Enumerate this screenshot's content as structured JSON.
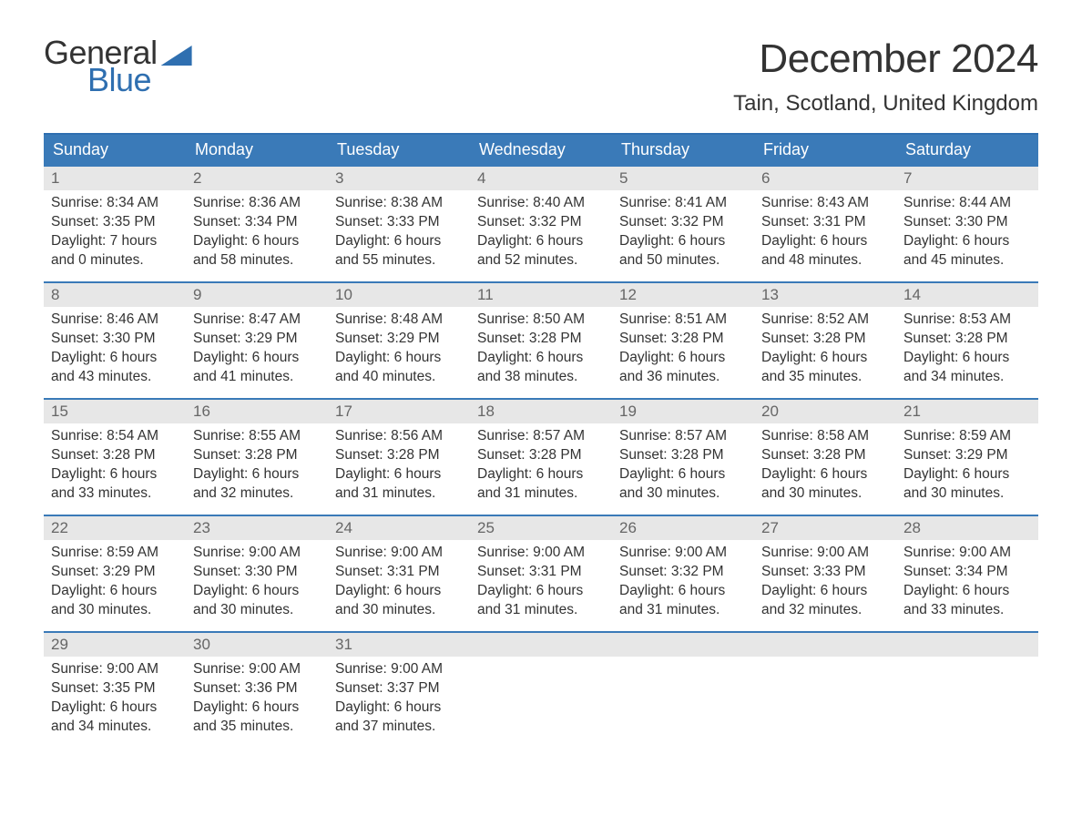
{
  "logo": {
    "word1": "General",
    "word2": "Blue"
  },
  "title": "December 2024",
  "location": "Tain, Scotland, United Kingdom",
  "colors": {
    "brand_blue": "#2f6fb0",
    "header_blue": "#3a7ab8",
    "daynum_bg": "#e7e7e7",
    "text": "#333333",
    "muted": "#666666"
  },
  "weekdays": [
    "Sunday",
    "Monday",
    "Tuesday",
    "Wednesday",
    "Thursday",
    "Friday",
    "Saturday"
  ],
  "weeks": [
    [
      {
        "n": "1",
        "sunrise": "Sunrise: 8:34 AM",
        "sunset": "Sunset: 3:35 PM",
        "d1": "Daylight: 7 hours",
        "d2": "and 0 minutes."
      },
      {
        "n": "2",
        "sunrise": "Sunrise: 8:36 AM",
        "sunset": "Sunset: 3:34 PM",
        "d1": "Daylight: 6 hours",
        "d2": "and 58 minutes."
      },
      {
        "n": "3",
        "sunrise": "Sunrise: 8:38 AM",
        "sunset": "Sunset: 3:33 PM",
        "d1": "Daylight: 6 hours",
        "d2": "and 55 minutes."
      },
      {
        "n": "4",
        "sunrise": "Sunrise: 8:40 AM",
        "sunset": "Sunset: 3:32 PM",
        "d1": "Daylight: 6 hours",
        "d2": "and 52 minutes."
      },
      {
        "n": "5",
        "sunrise": "Sunrise: 8:41 AM",
        "sunset": "Sunset: 3:32 PM",
        "d1": "Daylight: 6 hours",
        "d2": "and 50 minutes."
      },
      {
        "n": "6",
        "sunrise": "Sunrise: 8:43 AM",
        "sunset": "Sunset: 3:31 PM",
        "d1": "Daylight: 6 hours",
        "d2": "and 48 minutes."
      },
      {
        "n": "7",
        "sunrise": "Sunrise: 8:44 AM",
        "sunset": "Sunset: 3:30 PM",
        "d1": "Daylight: 6 hours",
        "d2": "and 45 minutes."
      }
    ],
    [
      {
        "n": "8",
        "sunrise": "Sunrise: 8:46 AM",
        "sunset": "Sunset: 3:30 PM",
        "d1": "Daylight: 6 hours",
        "d2": "and 43 minutes."
      },
      {
        "n": "9",
        "sunrise": "Sunrise: 8:47 AM",
        "sunset": "Sunset: 3:29 PM",
        "d1": "Daylight: 6 hours",
        "d2": "and 41 minutes."
      },
      {
        "n": "10",
        "sunrise": "Sunrise: 8:48 AM",
        "sunset": "Sunset: 3:29 PM",
        "d1": "Daylight: 6 hours",
        "d2": "and 40 minutes."
      },
      {
        "n": "11",
        "sunrise": "Sunrise: 8:50 AM",
        "sunset": "Sunset: 3:28 PM",
        "d1": "Daylight: 6 hours",
        "d2": "and 38 minutes."
      },
      {
        "n": "12",
        "sunrise": "Sunrise: 8:51 AM",
        "sunset": "Sunset: 3:28 PM",
        "d1": "Daylight: 6 hours",
        "d2": "and 36 minutes."
      },
      {
        "n": "13",
        "sunrise": "Sunrise: 8:52 AM",
        "sunset": "Sunset: 3:28 PM",
        "d1": "Daylight: 6 hours",
        "d2": "and 35 minutes."
      },
      {
        "n": "14",
        "sunrise": "Sunrise: 8:53 AM",
        "sunset": "Sunset: 3:28 PM",
        "d1": "Daylight: 6 hours",
        "d2": "and 34 minutes."
      }
    ],
    [
      {
        "n": "15",
        "sunrise": "Sunrise: 8:54 AM",
        "sunset": "Sunset: 3:28 PM",
        "d1": "Daylight: 6 hours",
        "d2": "and 33 minutes."
      },
      {
        "n": "16",
        "sunrise": "Sunrise: 8:55 AM",
        "sunset": "Sunset: 3:28 PM",
        "d1": "Daylight: 6 hours",
        "d2": "and 32 minutes."
      },
      {
        "n": "17",
        "sunrise": "Sunrise: 8:56 AM",
        "sunset": "Sunset: 3:28 PM",
        "d1": "Daylight: 6 hours",
        "d2": "and 31 minutes."
      },
      {
        "n": "18",
        "sunrise": "Sunrise: 8:57 AM",
        "sunset": "Sunset: 3:28 PM",
        "d1": "Daylight: 6 hours",
        "d2": "and 31 minutes."
      },
      {
        "n": "19",
        "sunrise": "Sunrise: 8:57 AM",
        "sunset": "Sunset: 3:28 PM",
        "d1": "Daylight: 6 hours",
        "d2": "and 30 minutes."
      },
      {
        "n": "20",
        "sunrise": "Sunrise: 8:58 AM",
        "sunset": "Sunset: 3:28 PM",
        "d1": "Daylight: 6 hours",
        "d2": "and 30 minutes."
      },
      {
        "n": "21",
        "sunrise": "Sunrise: 8:59 AM",
        "sunset": "Sunset: 3:29 PM",
        "d1": "Daylight: 6 hours",
        "d2": "and 30 minutes."
      }
    ],
    [
      {
        "n": "22",
        "sunrise": "Sunrise: 8:59 AM",
        "sunset": "Sunset: 3:29 PM",
        "d1": "Daylight: 6 hours",
        "d2": "and 30 minutes."
      },
      {
        "n": "23",
        "sunrise": "Sunrise: 9:00 AM",
        "sunset": "Sunset: 3:30 PM",
        "d1": "Daylight: 6 hours",
        "d2": "and 30 minutes."
      },
      {
        "n": "24",
        "sunrise": "Sunrise: 9:00 AM",
        "sunset": "Sunset: 3:31 PM",
        "d1": "Daylight: 6 hours",
        "d2": "and 30 minutes."
      },
      {
        "n": "25",
        "sunrise": "Sunrise: 9:00 AM",
        "sunset": "Sunset: 3:31 PM",
        "d1": "Daylight: 6 hours",
        "d2": "and 31 minutes."
      },
      {
        "n": "26",
        "sunrise": "Sunrise: 9:00 AM",
        "sunset": "Sunset: 3:32 PM",
        "d1": "Daylight: 6 hours",
        "d2": "and 31 minutes."
      },
      {
        "n": "27",
        "sunrise": "Sunrise: 9:00 AM",
        "sunset": "Sunset: 3:33 PM",
        "d1": "Daylight: 6 hours",
        "d2": "and 32 minutes."
      },
      {
        "n": "28",
        "sunrise": "Sunrise: 9:00 AM",
        "sunset": "Sunset: 3:34 PM",
        "d1": "Daylight: 6 hours",
        "d2": "and 33 minutes."
      }
    ],
    [
      {
        "n": "29",
        "sunrise": "Sunrise: 9:00 AM",
        "sunset": "Sunset: 3:35 PM",
        "d1": "Daylight: 6 hours",
        "d2": "and 34 minutes."
      },
      {
        "n": "30",
        "sunrise": "Sunrise: 9:00 AM",
        "sunset": "Sunset: 3:36 PM",
        "d1": "Daylight: 6 hours",
        "d2": "and 35 minutes."
      },
      {
        "n": "31",
        "sunrise": "Sunrise: 9:00 AM",
        "sunset": "Sunset: 3:37 PM",
        "d1": "Daylight: 6 hours",
        "d2": "and 37 minutes."
      },
      {
        "empty": true
      },
      {
        "empty": true
      },
      {
        "empty": true
      },
      {
        "empty": true
      }
    ]
  ]
}
